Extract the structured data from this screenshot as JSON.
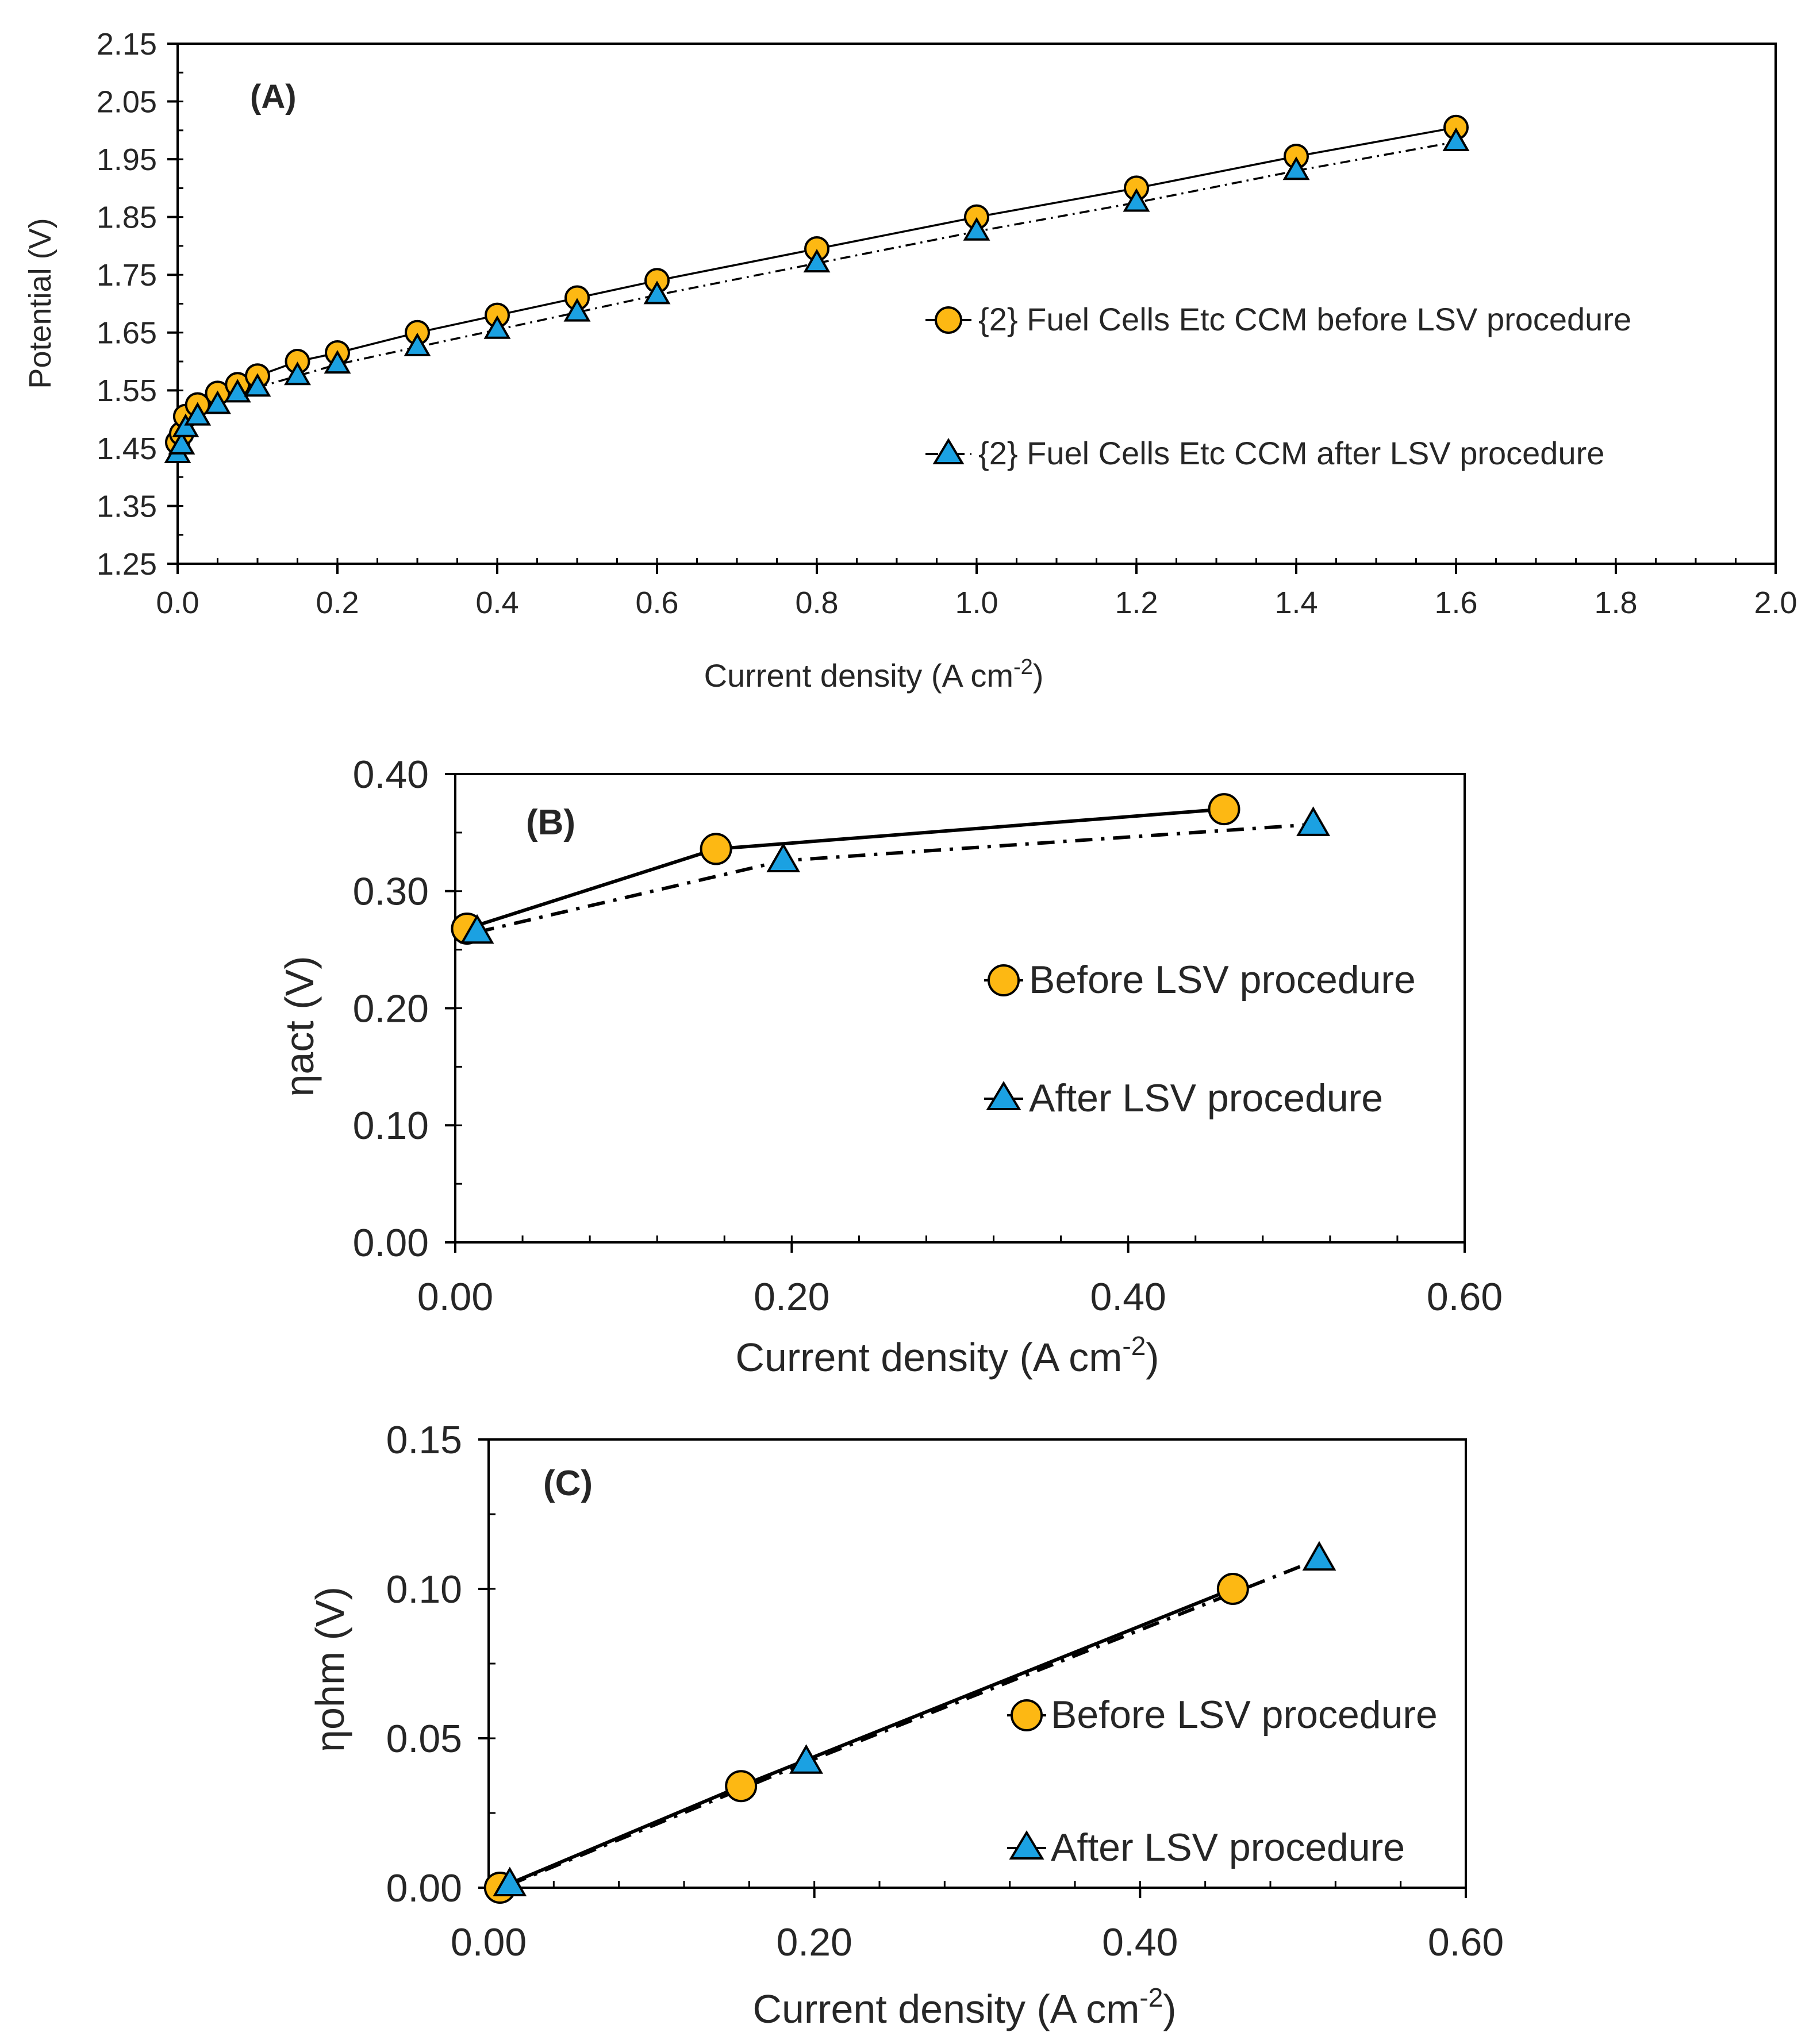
{
  "colors": {
    "before": "#FDB813",
    "after": "#1BA1E2",
    "stroke": "#000000",
    "axis": "#000000",
    "text": "#262626"
  },
  "chart_data": [
    {
      "id": "A",
      "type": "line",
      "panel_label": "(A)",
      "xlabel_main": "Current density (A cm",
      "xlabel_sup": "-2",
      "xlabel_end": ")",
      "ylabel": "Potential (V)",
      "xlim": [
        0,
        2.0
      ],
      "ylim": [
        1.25,
        2.15
      ],
      "xticks": [
        0,
        0.2,
        0.4,
        0.6,
        0.8,
        1.0,
        1.2,
        1.4,
        1.6,
        1.8,
        2.0
      ],
      "xtick_labels": [
        "0.0",
        "0.2",
        "0.4",
        "0.6",
        "0.8",
        "1.0",
        "1.2",
        "1.4",
        "1.6",
        "1.8",
        "2.0"
      ],
      "yticks": [
        1.25,
        1.35,
        1.45,
        1.55,
        1.65,
        1.75,
        1.85,
        1.95,
        2.05,
        2.15
      ],
      "ytick_labels": [
        "1.25",
        "1.35",
        "1.45",
        "1.55",
        "1.65",
        "1.75",
        "1.85",
        "1.95",
        "2.05",
        "2.15"
      ],
      "x_minor_step": 0.05,
      "y_minor_step": 0.05,
      "legend_position": "center-right",
      "series": [
        {
          "name": "{2} Fuel Cells Etc CCM before LSV procedure",
          "marker": "circle",
          "line": "solid",
          "x": [
            0,
            0.005,
            0.01,
            0.025,
            0.05,
            0.075,
            0.1,
            0.15,
            0.2,
            0.3,
            0.4,
            0.5,
            0.6,
            0.8,
            1.0,
            1.2,
            1.4,
            1.6
          ],
          "y": [
            1.46,
            1.475,
            1.505,
            1.525,
            1.545,
            1.56,
            1.575,
            1.6,
            1.615,
            1.65,
            1.68,
            1.71,
            1.74,
            1.795,
            1.85,
            1.9,
            1.955,
            2.005
          ]
        },
        {
          "name": "{2} Fuel Cells Etc CCM after LSV procedure",
          "marker": "triangle",
          "line": "dashdot",
          "x": [
            0,
            0.005,
            0.01,
            0.025,
            0.05,
            0.075,
            0.1,
            0.15,
            0.2,
            0.3,
            0.4,
            0.5,
            0.6,
            0.8,
            1.0,
            1.2,
            1.4,
            1.6
          ],
          "y": [
            1.44,
            1.455,
            1.485,
            1.505,
            1.525,
            1.545,
            1.555,
            1.575,
            1.595,
            1.625,
            1.655,
            1.685,
            1.715,
            1.77,
            1.825,
            1.875,
            1.93,
            1.98
          ]
        }
      ]
    },
    {
      "id": "B",
      "type": "line",
      "panel_label": "(B)",
      "xlabel_main": "Current density (A cm",
      "xlabel_sup": "-2",
      "xlabel_end": ")",
      "ylabel": "ηact (V)",
      "xlim": [
        0,
        0.6
      ],
      "ylim": [
        0,
        0.4
      ],
      "xticks": [
        0,
        0.2,
        0.4,
        0.6
      ],
      "xtick_labels": [
        "0.00",
        "0.20",
        "0.40",
        "0.60"
      ],
      "yticks": [
        0,
        0.1,
        0.2,
        0.3,
        0.4
      ],
      "ytick_labels": [
        "0.00",
        "0.10",
        "0.20",
        "0.30",
        "0.40"
      ],
      "x_minor_step": 0.04,
      "y_minor_step": 0.05,
      "legend_position": "center-right",
      "series": [
        {
          "name": "Before LSV procedure",
          "marker": "circle",
          "line": "solid",
          "x": [
            0.007,
            0.155,
            0.457
          ],
          "y": [
            0.268,
            0.336,
            0.37
          ]
        },
        {
          "name": "After LSV procedure",
          "marker": "triangle",
          "line": "dashdot",
          "x": [
            0.013,
            0.195,
            0.51
          ],
          "y": [
            0.265,
            0.326,
            0.357
          ]
        }
      ]
    },
    {
      "id": "C",
      "type": "line",
      "panel_label": "(C)",
      "xlabel_main": "Current density (A cm",
      "xlabel_sup": "-2",
      "xlabel_end": ")",
      "ylabel": "ηohm (V)",
      "xlim": [
        0,
        0.6
      ],
      "ylim": [
        0,
        0.15
      ],
      "xticks": [
        0,
        0.2,
        0.4,
        0.6
      ],
      "xtick_labels": [
        "0.00",
        "0.20",
        "0.40",
        "0.60"
      ],
      "yticks": [
        0,
        0.05,
        0.1,
        0.15
      ],
      "ytick_labels": [
        "0.00",
        "0.05",
        "0.10",
        "0.15"
      ],
      "x_minor_step": 0.04,
      "y_minor_step": 0.025,
      "legend_position": "center-right",
      "series": [
        {
          "name": "Before LSV procedure",
          "marker": "circle",
          "line": "solid",
          "x": [
            0.007,
            0.155,
            0.457
          ],
          "y": [
            0.0,
            0.034,
            0.1
          ]
        },
        {
          "name": "After LSV procedure",
          "marker": "triangle",
          "line": "dashdot",
          "x": [
            0.013,
            0.195,
            0.51
          ],
          "y": [
            0.001,
            0.042,
            0.11
          ]
        }
      ]
    }
  ]
}
